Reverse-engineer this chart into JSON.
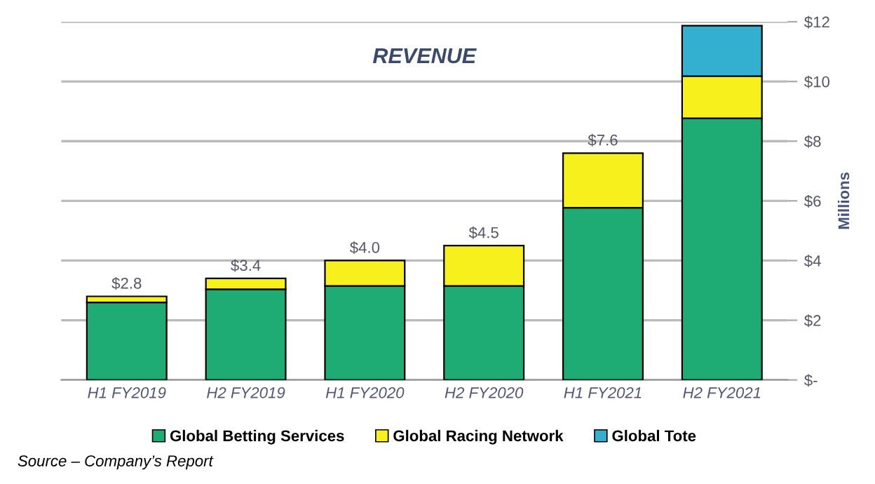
{
  "chart_data": {
    "type": "bar",
    "title": "REVENUE",
    "ylabel": "Millions",
    "stacked": true,
    "categories": [
      "H1 FY2019",
      "H2 FY2019",
      "H1 FY2020",
      "H2 FY2020",
      "H1 FY2021",
      "H2 FY2021"
    ],
    "series": [
      {
        "name": "Global Betting Services",
        "color": "#1fab74",
        "values": [
          2.6,
          3.04,
          3.15,
          3.15,
          5.77,
          8.77
        ]
      },
      {
        "name": "Global Racing Network",
        "color": "#f7f01d",
        "values": [
          0.2,
          0.36,
          0.85,
          1.35,
          1.83,
          1.41
        ]
      },
      {
        "name": "Global Tote",
        "color": "#33afcf",
        "values": [
          null,
          null,
          null,
          null,
          null,
          1.69
        ]
      }
    ],
    "totals": [
      "$2.8",
      "$3.4",
      "$4.0",
      "$4.5",
      "$7.6",
      null
    ],
    "ylim": [
      0,
      12
    ],
    "yticks": [
      {
        "value": 0,
        "label": "$-"
      },
      {
        "value": 2,
        "label": "$2"
      },
      {
        "value": 4,
        "label": "$4"
      },
      {
        "value": 6,
        "label": "$6"
      },
      {
        "value": 8,
        "label": "$8"
      },
      {
        "value": 10,
        "label": "$10"
      },
      {
        "value": 12,
        "label": "$12"
      }
    ],
    "grid": "y",
    "legend": "bottom",
    "annotations": [
      "Source – Company’s Report"
    ]
  }
}
